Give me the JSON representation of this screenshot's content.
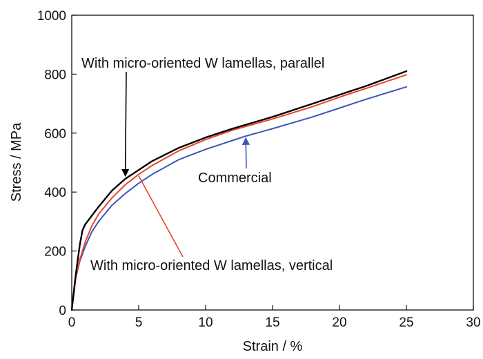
{
  "chart_data": {
    "type": "line",
    "xlabel": "Strain / %",
    "ylabel": "Stress / MPa",
    "xlim": [
      0,
      30
    ],
    "ylim": [
      0,
      1000
    ],
    "xticks": [
      0,
      5,
      10,
      15,
      20,
      25,
      30
    ],
    "yticks": [
      0,
      200,
      400,
      600,
      800,
      1000
    ],
    "grid": false,
    "legend": "none",
    "series": [
      {
        "color": "#000000",
        "x": [
          0,
          0.3,
          0.6,
          0.8,
          1,
          1.5,
          2,
          3,
          4,
          5,
          6,
          8,
          10,
          12,
          15,
          18,
          20,
          22,
          25
        ],
        "y": [
          0,
          120,
          220,
          270,
          290,
          320,
          350,
          405,
          445,
          475,
          505,
          550,
          585,
          615,
          655,
          700,
          730,
          760,
          810
        ]
      },
      {
        "color": "#e8452e",
        "x": [
          0,
          0.3,
          0.6,
          1,
          1.5,
          2,
          3,
          4,
          5,
          6,
          8,
          10,
          12,
          15,
          18,
          20,
          22,
          25
        ],
        "y": [
          0,
          110,
          170,
          230,
          285,
          325,
          380,
          425,
          460,
          490,
          540,
          578,
          610,
          648,
          690,
          722,
          752,
          798
        ]
      },
      {
        "color": "#3a57b8",
        "x": [
          0,
          0.3,
          0.6,
          1,
          1.5,
          2,
          3,
          4,
          5,
          6,
          8,
          10,
          12,
          13,
          15,
          18,
          20,
          22,
          25
        ],
        "y": [
          0,
          110,
          165,
          215,
          265,
          300,
          355,
          395,
          430,
          460,
          510,
          545,
          575,
          590,
          615,
          655,
          685,
          715,
          757
        ]
      }
    ],
    "annotations": [
      {
        "text": "With micro-oriented W lamellas, parallel",
        "color": "#000000",
        "target_x": 4,
        "target_y": 445
      },
      {
        "text": "Commercial",
        "color": "#3a57b8",
        "target_x": 13,
        "target_y": 593
      },
      {
        "text": "With micro-oriented W lamellas, vertical",
        "color": "#e8452e",
        "target_x": 5,
        "target_y": 462
      }
    ]
  }
}
